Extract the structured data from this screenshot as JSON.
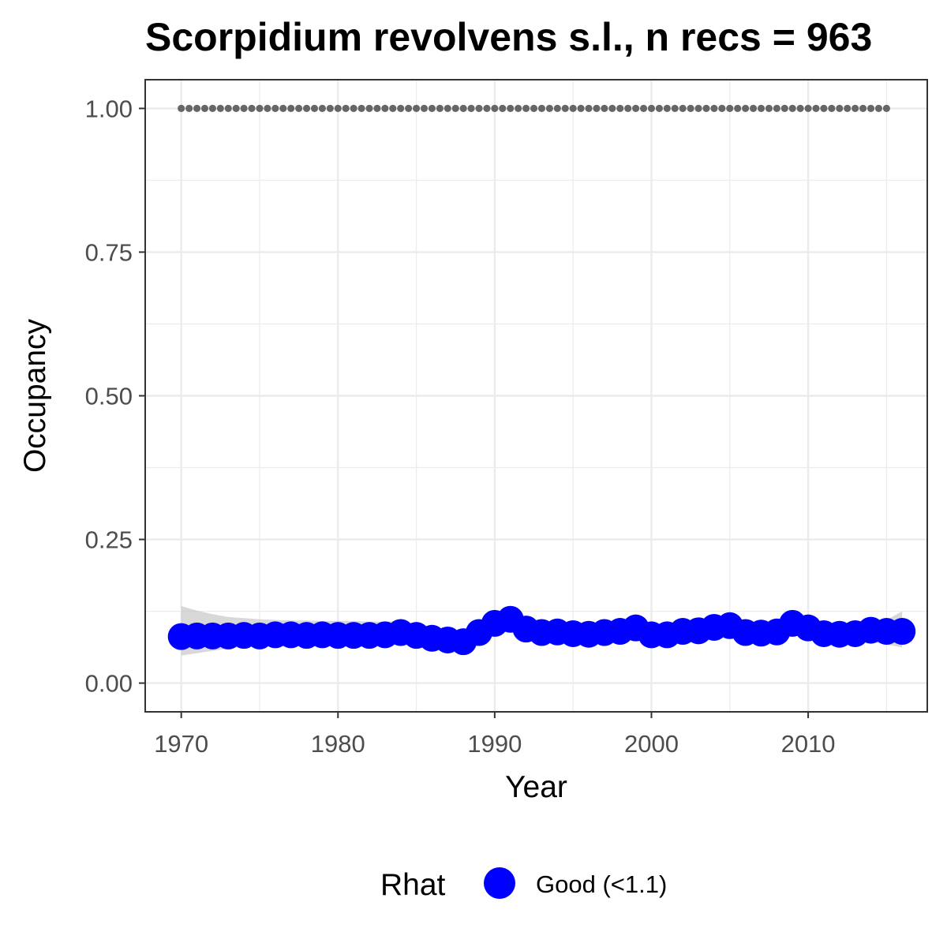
{
  "chart_data": {
    "type": "line",
    "title": "Scorpidium revolvens s.l., n recs = 963",
    "xlabel": "Year",
    "ylabel": "Occupancy",
    "xlim": [
      1967.7,
      2017.6
    ],
    "ylim": [
      -0.05,
      1.05
    ],
    "x_ticks": [
      1970,
      1980,
      1990,
      2000,
      2010
    ],
    "y_ticks": [
      0.0,
      0.25,
      0.5,
      0.75,
      1.0
    ],
    "x_tick_labels": [
      "1970",
      "1980",
      "1990",
      "2000",
      "2010"
    ],
    "y_tick_labels": [
      "0.00",
      "0.25",
      "0.50",
      "0.75",
      "1.00"
    ],
    "grid": true,
    "x": [
      1970,
      1971,
      1972,
      1973,
      1974,
      1975,
      1976,
      1977,
      1978,
      1979,
      1980,
      1981,
      1982,
      1983,
      1984,
      1985,
      1986,
      1987,
      1988,
      1989,
      1990,
      1991,
      1992,
      1993,
      1994,
      1995,
      1996,
      1997,
      1998,
      1999,
      2000,
      2001,
      2002,
      2003,
      2004,
      2005,
      2006,
      2007,
      2008,
      2009,
      2010,
      2011,
      2012,
      2013,
      2014,
      2015,
      2016
    ],
    "occupancy": [
      0.081,
      0.082,
      0.082,
      0.082,
      0.083,
      0.082,
      0.084,
      0.084,
      0.083,
      0.084,
      0.083,
      0.083,
      0.083,
      0.084,
      0.088,
      0.083,
      0.078,
      0.075,
      0.072,
      0.088,
      0.104,
      0.111,
      0.094,
      0.088,
      0.089,
      0.086,
      0.085,
      0.088,
      0.09,
      0.096,
      0.084,
      0.084,
      0.09,
      0.091,
      0.097,
      0.1,
      0.088,
      0.087,
      0.089,
      0.104,
      0.096,
      0.086,
      0.085,
      0.086,
      0.092,
      0.09,
      0.09
    ],
    "ci_lower": [
      0.048,
      0.052,
      0.056,
      0.06,
      0.063,
      0.066,
      0.068,
      0.07,
      0.071,
      0.071,
      0.072,
      0.072,
      0.071,
      0.071,
      0.071,
      0.069,
      0.066,
      0.062,
      0.06,
      0.074,
      0.09,
      0.096,
      0.083,
      0.078,
      0.077,
      0.076,
      0.075,
      0.076,
      0.078,
      0.083,
      0.074,
      0.074,
      0.078,
      0.079,
      0.084,
      0.087,
      0.078,
      0.077,
      0.078,
      0.09,
      0.083,
      0.074,
      0.072,
      0.07,
      0.072,
      0.067,
      0.062
    ],
    "ci_upper": [
      0.134,
      0.126,
      0.12,
      0.115,
      0.113,
      0.111,
      0.11,
      0.109,
      0.109,
      0.108,
      0.108,
      0.108,
      0.107,
      0.107,
      0.108,
      0.104,
      0.097,
      0.094,
      0.09,
      0.104,
      0.12,
      0.126,
      0.108,
      0.102,
      0.103,
      0.1,
      0.099,
      0.102,
      0.104,
      0.11,
      0.098,
      0.098,
      0.104,
      0.105,
      0.111,
      0.114,
      0.102,
      0.101,
      0.103,
      0.118,
      0.11,
      0.1,
      0.099,
      0.1,
      0.106,
      0.11,
      0.125
    ],
    "reference_x": [
      1970,
      1971,
      1972,
      1973,
      1974,
      1975,
      1976,
      1977,
      1978,
      1979,
      1980,
      1981,
      1982,
      1983,
      1984,
      1985,
      1986,
      1987,
      1988,
      1989,
      1990,
      1991,
      1992,
      1993,
      1994,
      1995,
      1996,
      1997,
      1998,
      1999,
      2000,
      2001,
      2002,
      2003,
      2004,
      2005,
      2006,
      2007,
      2008,
      2009,
      2010,
      2011,
      2012,
      2013,
      2014,
      2015
    ],
    "reference_value": 1.0,
    "legend": {
      "title": "Rhat",
      "entries": [
        {
          "label": "Good (<1.1)",
          "color": "#0000ff"
        }
      ],
      "placement": "bottom"
    },
    "colors": {
      "points": "#0000ff",
      "ribbon": "#bebebe",
      "reference": "#666666",
      "grid": "#ebebeb",
      "panel_border": "#333333",
      "tick_label": "#4d4d4d"
    }
  }
}
